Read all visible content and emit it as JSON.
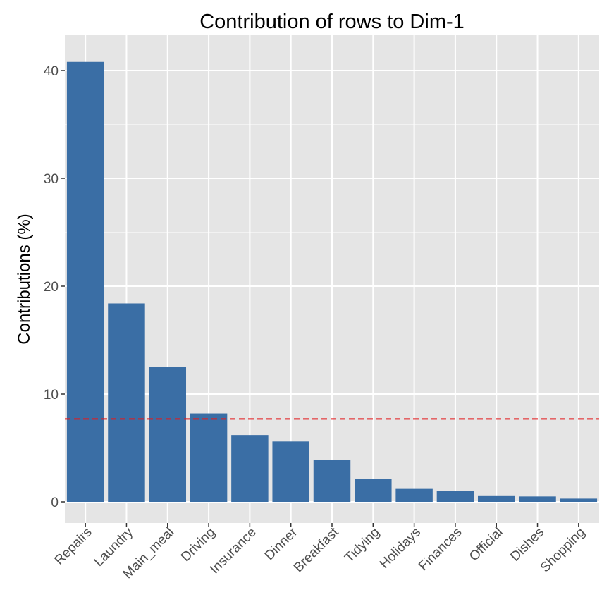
{
  "chart_data": {
    "type": "bar",
    "title": "Contribution of rows to Dim-1",
    "xlabel": "",
    "ylabel": "Contributions (%)",
    "categories": [
      "Repairs",
      "Laundry",
      "Main_meal",
      "Driving",
      "Insurance",
      "Dinner",
      "Breakfast",
      "Tidying",
      "Holidays",
      "Finances",
      "Official",
      "Dishes",
      "Shopping"
    ],
    "values": [
      40.8,
      18.4,
      12.5,
      8.2,
      6.2,
      5.6,
      3.9,
      2.1,
      1.2,
      1.0,
      0.6,
      0.5,
      0.3
    ],
    "reference_line": 7.69,
    "ylim": [
      -2,
      43.6
    ],
    "yticks": [
      0,
      10,
      20,
      30,
      40
    ],
    "ytick_labels": [
      "0",
      "10",
      "20",
      "30",
      "40"
    ],
    "grid": true,
    "colors": {
      "bar": "#3A6EA5",
      "reference_line": "#E41A1C",
      "panel": "#E5E5E5",
      "grid": "#FFFFFF"
    }
  }
}
